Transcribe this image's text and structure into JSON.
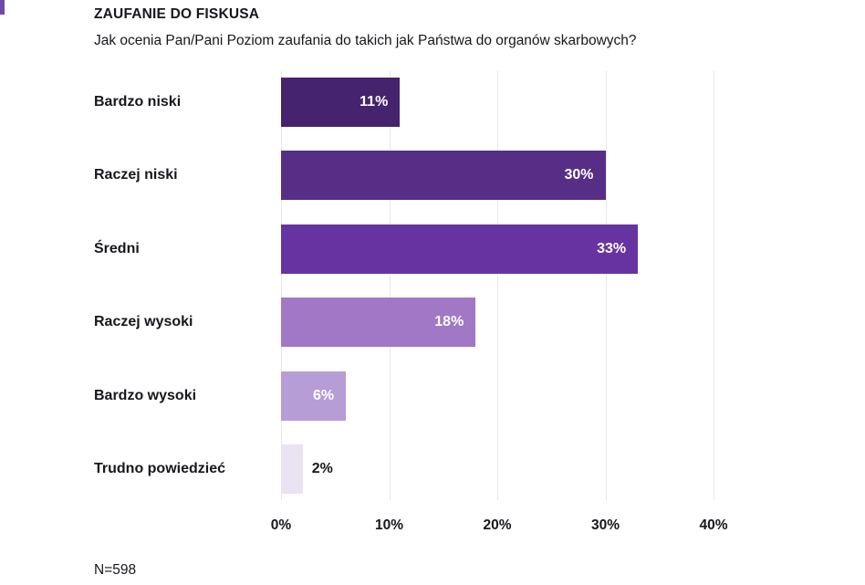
{
  "page": {
    "background": "#ffffff"
  },
  "corner_mark": {
    "color": "#6f4aa5"
  },
  "header": {
    "title": "ZAUFANIE DO FISKUSA",
    "subtitle": "Jak ocenia Pan/Pani Poziom zaufania do takich jak Państwa do organów skarbowych?"
  },
  "chart_data": {
    "type": "bar",
    "orientation": "horizontal",
    "title": "ZAUFANIE DO FISKUSA",
    "subtitle": "Jak ocenia Pan/Pani Poziom zaufania do takich jak Państwa do organów skarbowych?",
    "categories": [
      "Bardzo niski",
      "Raczej niski",
      "Średni",
      "Raczej wysoki",
      "Bardzo wysoki",
      "Trudno powiedzieć"
    ],
    "values": [
      11,
      30,
      33,
      18,
      6,
      2
    ],
    "value_labels": [
      "11%",
      "30%",
      "33%",
      "18%",
      "6%",
      "2%"
    ],
    "bar_colors": [
      "#45236d",
      "#572e86",
      "#6733a1",
      "#a078c5",
      "#b69dd6",
      "#eae3f3"
    ],
    "label_inside": [
      true,
      true,
      true,
      true,
      true,
      false
    ],
    "x_ticks": [
      "0%",
      "10%",
      "20%",
      "30%",
      "40%"
    ],
    "xlim": [
      0,
      40
    ],
    "grid": "vertical",
    "gridline_color": "#e8e5ec",
    "value_label_color_inside": "#ffffff",
    "value_label_color_outside": "#17171c",
    "legend": "none"
  },
  "footer": {
    "sample_size": "N=598"
  }
}
